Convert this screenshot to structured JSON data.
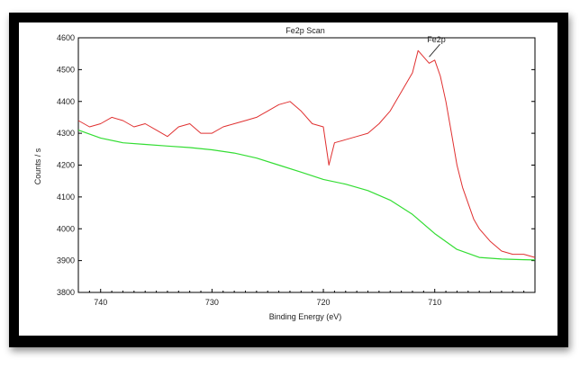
{
  "chart_data": {
    "type": "line",
    "title": "Fe2p Scan",
    "xlabel": "Binding Energy (eV)",
    "ylabel": "Counts / s",
    "x_reversed": true,
    "xlim": [
      742,
      701
    ],
    "ylim": [
      3800,
      4600
    ],
    "xticks": [
      740,
      730,
      720,
      710
    ],
    "yticks": [
      3800,
      3900,
      4000,
      4100,
      4200,
      4300,
      4400,
      4500,
      4600
    ],
    "grid": false,
    "annotations": [
      {
        "text": "Fe2p",
        "x": 710.5,
        "y": 4540
      }
    ],
    "series": [
      {
        "role": "measured",
        "color": "#e03030",
        "x": [
          742,
          741,
          740,
          739,
          738,
          737,
          736,
          735,
          734,
          733,
          732,
          731,
          730,
          729,
          728,
          727,
          726,
          725,
          724,
          723,
          722,
          721,
          720,
          719.5,
          719,
          718,
          717,
          716,
          715,
          714,
          713,
          712,
          711.5,
          711,
          710.5,
          710,
          709.5,
          709,
          708.5,
          708,
          707.5,
          707,
          706.5,
          706,
          705,
          704,
          703,
          702,
          701
        ],
        "y": [
          4340,
          4320,
          4330,
          4350,
          4340,
          4320,
          4330,
          4310,
          4290,
          4320,
          4330,
          4300,
          4300,
          4320,
          4330,
          4340,
          4350,
          4370,
          4390,
          4400,
          4370,
          4330,
          4320,
          4200,
          4270,
          4280,
          4290,
          4300,
          4330,
          4370,
          4430,
          4490,
          4560,
          4540,
          4520,
          4530,
          4480,
          4400,
          4300,
          4200,
          4130,
          4080,
          4030,
          4000,
          3960,
          3930,
          3920,
          3920,
          3910
        ]
      },
      {
        "role": "background",
        "color": "#33dd33",
        "x": [
          742,
          740,
          738,
          736,
          734,
          732,
          730,
          728,
          726,
          724,
          722,
          720,
          718,
          716,
          714,
          712,
          710,
          708,
          706,
          704,
          702,
          701
        ],
        "y": [
          4310,
          4285,
          4270,
          4265,
          4260,
          4255,
          4248,
          4238,
          4222,
          4200,
          4178,
          4155,
          4140,
          4120,
          4090,
          4045,
          3985,
          3935,
          3910,
          3905,
          3903,
          3902
        ]
      }
    ]
  }
}
